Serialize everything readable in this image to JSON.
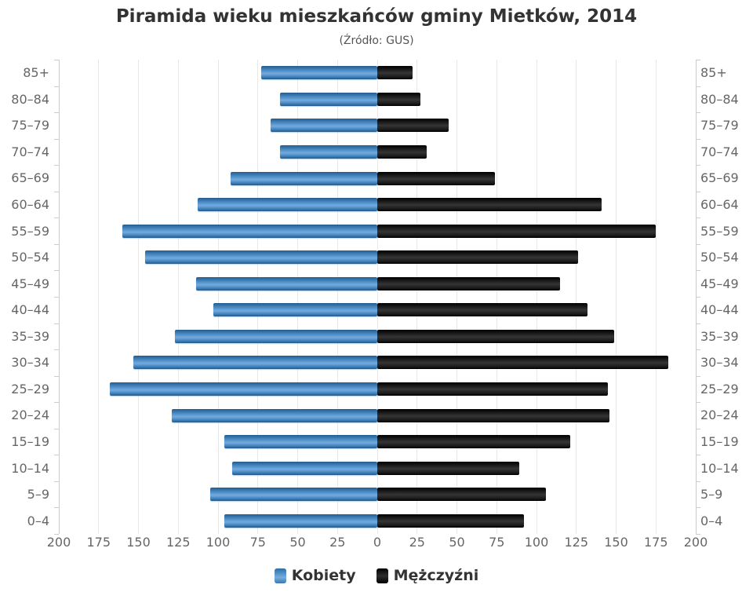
{
  "chart_data": {
    "type": "bar",
    "subtype": "population-pyramid",
    "title": "Piramida wieku mieszkańców gminy Mietków, 2014",
    "subtitle": "(Źródło: GUS)",
    "categories": [
      "85+",
      "80–84",
      "75–79",
      "70–74",
      "65–69",
      "60–64",
      "55–59",
      "50–54",
      "45–49",
      "40–44",
      "35–39",
      "30–34",
      "25–29",
      "20–24",
      "15–19",
      "10–14",
      "5–9",
      "0–4"
    ],
    "series": [
      {
        "name": "Kobiety",
        "side": "left",
        "color": "#3d7fb8",
        "values": [
          73,
          61,
          67,
          61,
          92,
          113,
          160,
          146,
          114,
          103,
          127,
          153,
          168,
          129,
          96,
          91,
          105,
          96
        ]
      },
      {
        "name": "Mężczyźni",
        "side": "right",
        "color": "#1a1a1a",
        "values": [
          22,
          27,
          45,
          31,
          74,
          141,
          175,
          126,
          115,
          132,
          149,
          183,
          145,
          146,
          121,
          89,
          106,
          92
        ]
      }
    ],
    "x_ticks": [
      "200",
      "175",
      "150",
      "125",
      "100",
      "75",
      "50",
      "25",
      "0",
      "25",
      "50",
      "75",
      "100",
      "125",
      "150",
      "175",
      "200"
    ],
    "x_max": 200,
    "x_tick_step": 25,
    "grid": true,
    "legend_position": "bottom",
    "axis_label_color": "#666666",
    "gridline_color": "#e8e8e8",
    "title_color": "#333333"
  }
}
